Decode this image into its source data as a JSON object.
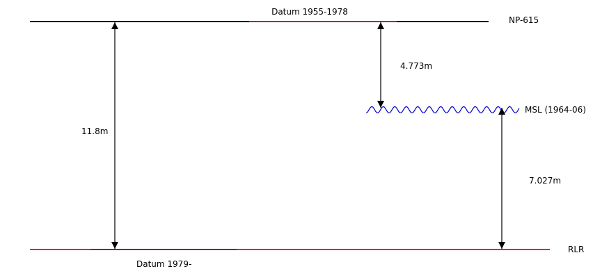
{
  "levels": {
    "np615": {
      "label": "NP-615",
      "color": "#000000"
    },
    "rlr": {
      "label": "RLR",
      "color": "#ff0000"
    },
    "msl": {
      "label": "MSL (1964-06)",
      "color": "#0000cc"
    }
  },
  "datums": {
    "old": {
      "label": "Datum 1955-1978",
      "color": "#cc0000"
    },
    "new": {
      "label": "Datum 1979-"
    }
  },
  "measurements": {
    "np615_to_rlr": "11.8m",
    "np615_to_msl": "4.773m",
    "msl_to_rlr": "7.027m"
  }
}
